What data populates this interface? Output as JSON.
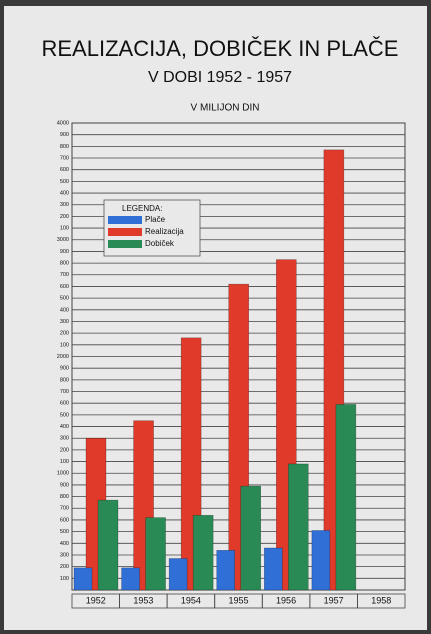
{
  "chart_data": {
    "type": "bar",
    "title": "REALIZACIJA, DOBIČEK IN PLAČE",
    "subtitle": "V DOBI 1952 - 1957",
    "y_label": "V MILIJON DIN",
    "legend_title": "LEGENDA:",
    "categories": [
      "1952",
      "1953",
      "1954",
      "1955",
      "1956",
      "1957",
      "1958"
    ],
    "series": [
      {
        "name": "Plače",
        "color": "#2f6fd6",
        "values": [
          190,
          190,
          270,
          340,
          360,
          510,
          null
        ]
      },
      {
        "name": "Realizacija",
        "color": "#e03a2a",
        "values": [
          1300,
          1450,
          2160,
          2620,
          2830,
          3770,
          null
        ]
      },
      {
        "name": "Dobiček",
        "color": "#2a8a55",
        "values": [
          770,
          620,
          640,
          890,
          1080,
          1590,
          null
        ]
      }
    ],
    "ylim": [
      0,
      4000
    ],
    "yticks": [
      100,
      200,
      300,
      400,
      500,
      600,
      700,
      800,
      900,
      1000,
      {
        "value": 1100,
        "label": "100"
      },
      {
        "value": 1200,
        "label": "200"
      },
      {
        "value": 1300,
        "label": "300"
      },
      {
        "value": 1400,
        "label": "400"
      },
      {
        "value": 1500,
        "label": "500"
      },
      {
        "value": 1600,
        "label": "600"
      },
      {
        "value": 1700,
        "label": "700"
      },
      {
        "value": 1800,
        "label": "800"
      },
      {
        "value": 1900,
        "label": "900"
      },
      2000,
      {
        "value": 2100,
        "label": "100"
      },
      {
        "value": 2200,
        "label": "200"
      },
      {
        "value": 2300,
        "label": "300"
      },
      {
        "value": 2400,
        "label": "400"
      },
      {
        "value": 2500,
        "label": "500"
      },
      {
        "value": 2600,
        "label": "600"
      },
      {
        "value": 2700,
        "label": "700"
      },
      {
        "value": 2800,
        "label": "800"
      },
      {
        "value": 2900,
        "label": "900"
      },
      3000,
      {
        "value": 3100,
        "label": "100"
      },
      {
        "value": 3200,
        "label": "200"
      },
      {
        "value": 3300,
        "label": "300"
      },
      {
        "value": 3400,
        "label": "400"
      },
      {
        "value": 3500,
        "label": "500"
      },
      {
        "value": 3600,
        "label": "600"
      },
      {
        "value": 3700,
        "label": "700"
      },
      {
        "value": 3800,
        "label": "800"
      },
      {
        "value": 3900,
        "label": "900"
      },
      4000
    ],
    "grid": true
  }
}
